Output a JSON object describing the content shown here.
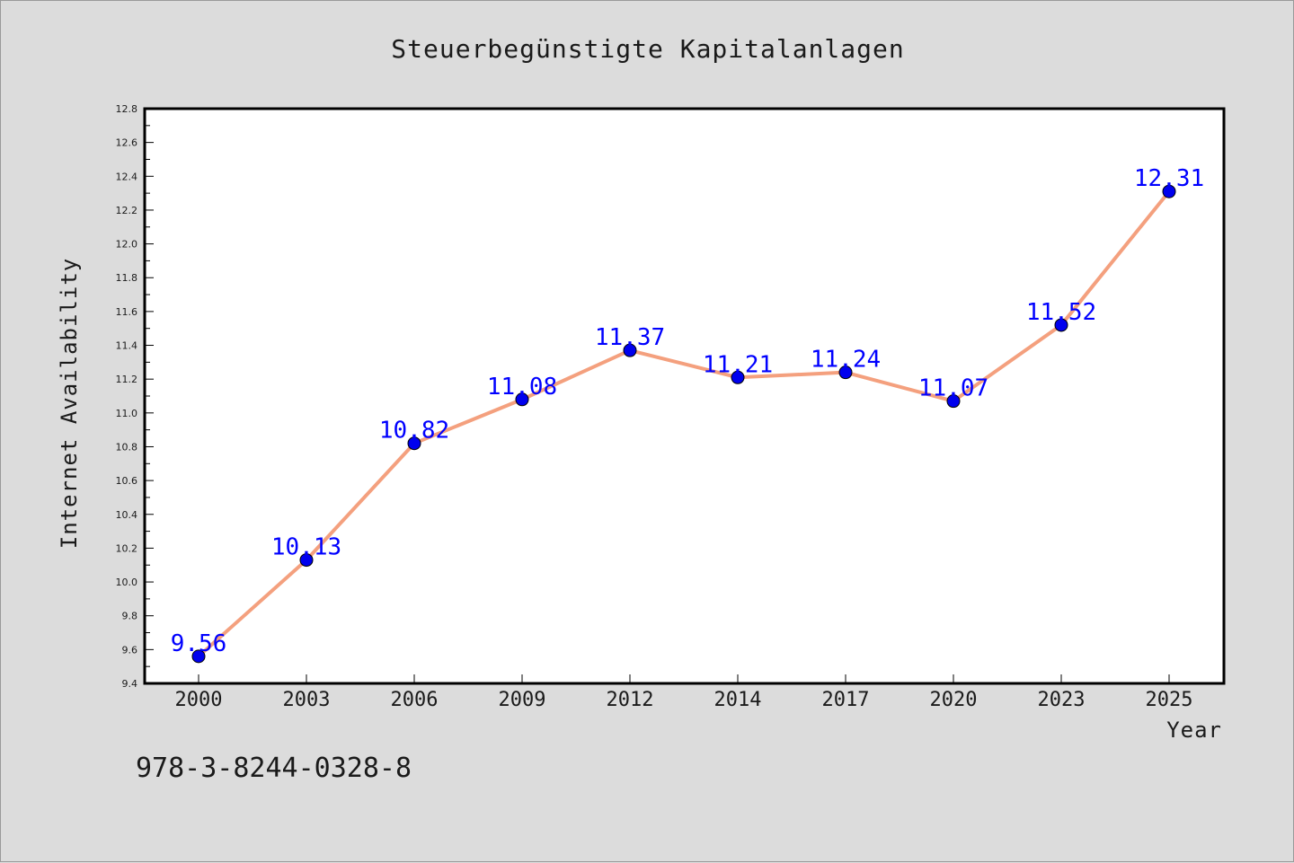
{
  "chart_data": {
    "type": "line",
    "title": "Steuerbegünstigte Kapitalanlagen",
    "xlabel": "Year",
    "ylabel": "Internet Availability",
    "categories": [
      "2000",
      "2003",
      "2006",
      "2009",
      "2012",
      "2014",
      "2017",
      "2020",
      "2023",
      "2025"
    ],
    "series": [
      {
        "values": [
          9.56,
          10.13,
          10.82,
          11.08,
          11.37,
          11.21,
          11.24,
          11.07,
          11.52,
          12.31
        ],
        "labels": [
          "9.56",
          "10.13",
          "10.82",
          "11.08",
          "11.37",
          "11.21",
          "11.24",
          "11.07",
          "11.52",
          "12.31"
        ],
        "line_color": "#f4a07e",
        "marker_color": "#0000ee",
        "label_color": "#0000ff"
      }
    ],
    "ylim": [
      9.4,
      12.8
    ],
    "yticks": [
      "9.4",
      "9.6",
      "9.8",
      "10.0",
      "10.2",
      "10.4",
      "10.6",
      "10.8",
      "11.0",
      "11.2",
      "11.4",
      "11.6",
      "11.8",
      "12.0",
      "12.2",
      "12.4",
      "12.6",
      "12.8"
    ],
    "grid": false,
    "legend": "none"
  },
  "footer": {
    "code": "978-3-8244-0328-8"
  },
  "colors": {
    "background": "#dcdcdc",
    "plot_background": "#ffffff",
    "axis": "#000000"
  }
}
